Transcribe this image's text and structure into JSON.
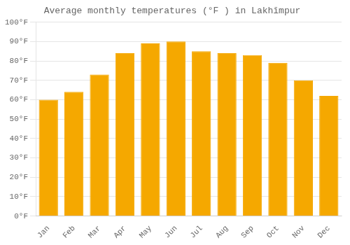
{
  "chart_data": {
    "type": "bar",
    "title": "Average monthly temperatures (°F ) in Lakhīmpur",
    "categories": [
      "Jan",
      "Feb",
      "Mar",
      "Apr",
      "May",
      "Jun",
      "Jul",
      "Aug",
      "Sep",
      "Oct",
      "Nov",
      "Dec"
    ],
    "values": [
      60,
      64,
      73,
      84,
      89,
      90,
      85,
      84,
      83,
      79,
      70,
      62
    ],
    "color": "#F5A800",
    "ylim": [
      0,
      100
    ],
    "yticks": [
      {
        "value": 0,
        "label": "0°F"
      },
      {
        "value": 10,
        "label": "10°F"
      },
      {
        "value": 20,
        "label": "20°F"
      },
      {
        "value": 30,
        "label": "30°F"
      },
      {
        "value": 40,
        "label": "40°F"
      },
      {
        "value": 50,
        "label": "50°F"
      },
      {
        "value": 60,
        "label": "60°F"
      },
      {
        "value": 70,
        "label": "70°F"
      },
      {
        "value": 80,
        "label": "80°F"
      },
      {
        "value": 90,
        "label": "90°F"
      },
      {
        "value": 100,
        "label": "100°F"
      }
    ],
    "grid": true
  }
}
